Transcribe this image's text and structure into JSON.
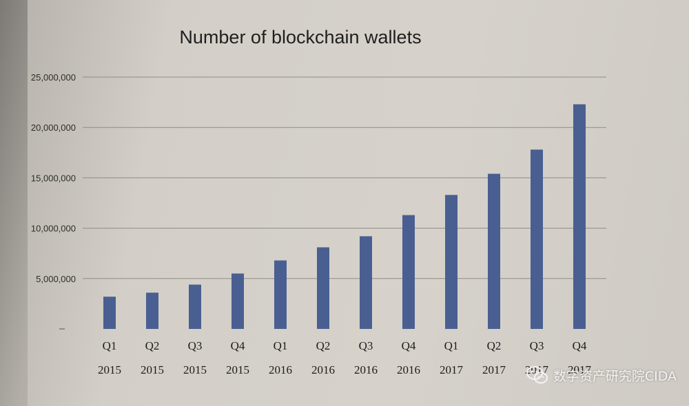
{
  "chart_data": {
    "type": "bar",
    "title": "Number of blockchain wallets",
    "xlabel": "",
    "ylabel": "",
    "categories": [
      [
        "Q1",
        "2015"
      ],
      [
        "Q2",
        "2015"
      ],
      [
        "Q3",
        "2015"
      ],
      [
        "Q4",
        "2015"
      ],
      [
        "Q1",
        "2016"
      ],
      [
        "Q2",
        "2016"
      ],
      [
        "Q3",
        "2016"
      ],
      [
        "Q4",
        "2016"
      ],
      [
        "Q1",
        "2017"
      ],
      [
        "Q2",
        "2017"
      ],
      [
        "Q3",
        "2017"
      ],
      [
        "Q4",
        "2017"
      ]
    ],
    "values": [
      3200000,
      3600000,
      4400000,
      5500000,
      6800000,
      8100000,
      9200000,
      11300000,
      13300000,
      15400000,
      17800000,
      22300000
    ],
    "ylim": [
      0,
      25000000
    ],
    "yticks": [
      5000000,
      10000000,
      15000000,
      20000000,
      25000000
    ],
    "ytick_labels": [
      "5,000,000",
      "10,000,000",
      "15,000,000",
      "20,000,000",
      "25,000,000"
    ],
    "grid": true,
    "bar_color": "#4a5f91"
  },
  "watermark": {
    "icon": "wechat-icon",
    "text": "数字资产研究院CIDA"
  }
}
